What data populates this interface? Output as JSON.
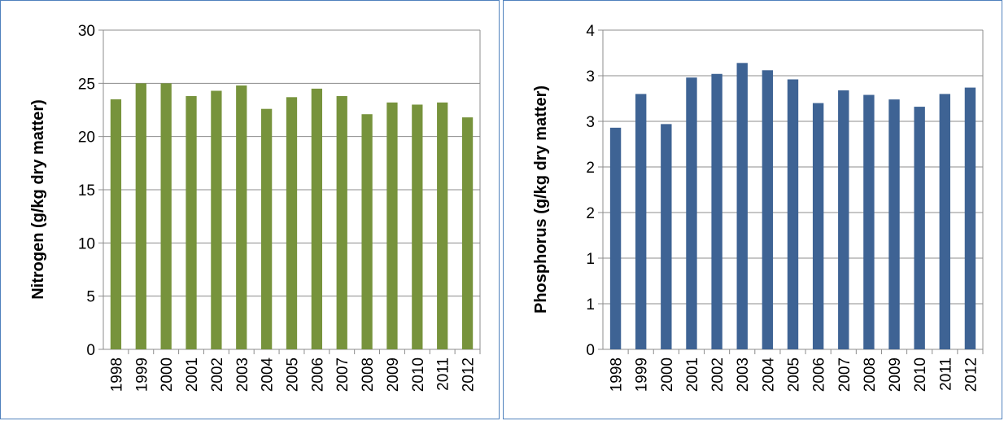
{
  "chart_data": [
    {
      "type": "bar",
      "title": "",
      "xlabel": "",
      "ylabel": "Nitrogen (g/kg dry matter)",
      "ylim": [
        0,
        30
      ],
      "yticks": [
        "0",
        "5",
        "10",
        "15",
        "20",
        "25",
        "30"
      ],
      "grid": true,
      "color": "#77933c",
      "categories": [
        "1998",
        "1999",
        "2000",
        "2001",
        "2002",
        "2003",
        "2004",
        "2005",
        "2006",
        "2007",
        "2008",
        "2009",
        "2010",
        "2011",
        "2012"
      ],
      "values": [
        23.5,
        25.0,
        25.0,
        23.8,
        24.3,
        24.8,
        22.6,
        23.7,
        24.5,
        23.8,
        22.1,
        23.2,
        23.0,
        23.2,
        21.8
      ]
    },
    {
      "type": "bar",
      "title": "",
      "xlabel": "",
      "ylabel": "Phosphorus (g/kg dry matter)",
      "ylim": [
        0,
        3.5
      ],
      "yticks": [
        "0",
        "1",
        "1",
        "2",
        "2",
        "3",
        "3",
        "4"
      ],
      "grid": true,
      "color": "#3e6394",
      "categories": [
        "1998",
        "1999",
        "2000",
        "2001",
        "2002",
        "2003",
        "2004",
        "2005",
        "2006",
        "2007",
        "2008",
        "2009",
        "2010",
        "2011",
        "2012"
      ],
      "values": [
        2.43,
        2.8,
        2.47,
        2.98,
        3.02,
        3.14,
        3.06,
        2.96,
        2.7,
        2.84,
        2.79,
        2.74,
        2.66,
        2.8,
        2.87
      ]
    }
  ]
}
